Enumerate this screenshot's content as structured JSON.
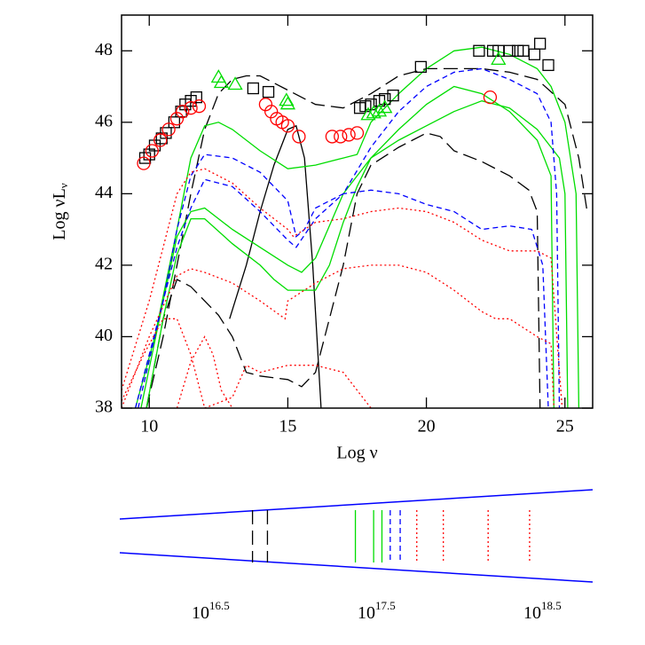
{
  "chart_data": [
    {
      "type": "line",
      "x_label": "Log ν",
      "y_label": {
        "main": "Log νL",
        "sub": "ν"
      },
      "xlim": [
        9,
        26
      ],
      "ylim": [
        38,
        49
      ],
      "xticks": [
        10,
        15,
        20,
        25
      ],
      "yticks": [
        38,
        40,
        42,
        44,
        46,
        48
      ],
      "series": [
        {
          "color": "#000000",
          "dash": "longdash",
          "x": [
            9.9,
            10.5,
            11,
            11.5,
            12,
            12.5,
            13,
            13.5,
            14,
            15,
            16,
            17,
            18,
            19,
            20,
            21,
            22,
            23,
            24,
            25,
            25.5,
            25.8
          ],
          "values": [
            38,
            40,
            42,
            44,
            45.8,
            46.8,
            47.2,
            47.3,
            47.3,
            46.9,
            46.5,
            46.4,
            46.8,
            47.3,
            47.5,
            47.5,
            47.5,
            47.4,
            47.2,
            46.5,
            45,
            43.5
          ]
        },
        {
          "color": "#000000",
          "dash": "longdash",
          "x": [
            9.9,
            10.5,
            11,
            11.5,
            12,
            12.5,
            13,
            13.5,
            14,
            15,
            15.5,
            16,
            16.5,
            17,
            17.5,
            18,
            19,
            20,
            20.5,
            21,
            22,
            23,
            23.7,
            24,
            24.1
          ],
          "values": [
            38,
            40.5,
            41.6,
            41.4,
            41,
            40.6,
            40,
            39,
            38.9,
            38.8,
            38.6,
            39,
            40.5,
            42,
            44,
            44.8,
            45.3,
            45.7,
            45.6,
            45.2,
            44.9,
            44.5,
            44.1,
            43.5,
            38
          ]
        },
        {
          "color": "#000000",
          "dash": "solid",
          "x": [
            12.9,
            13.5,
            14,
            14.5,
            15,
            15.3,
            15.6,
            15.9,
            16.2
          ],
          "values": [
            40.5,
            42,
            43.5,
            44.8,
            45.8,
            45.9,
            45,
            42,
            38
          ]
        },
        {
          "color": "#00dd00",
          "dash": "solid",
          "x": [
            9.5,
            10.2,
            11,
            11.5,
            12,
            12.5,
            13,
            14,
            15,
            16,
            17,
            17.5,
            18,
            19,
            20,
            21,
            22,
            23,
            24,
            24.5,
            25,
            25.4,
            25.5
          ],
          "values": [
            38,
            40,
            43,
            45,
            45.9,
            46,
            45.8,
            45.2,
            44.7,
            44.8,
            45,
            45.1,
            46,
            46.8,
            47.5,
            48,
            48.1,
            47.9,
            47.5,
            47,
            46,
            44,
            38
          ]
        },
        {
          "color": "#00dd00",
          "dash": "solid",
          "x": [
            9.7,
            10.5,
            11,
            11.5,
            12,
            13,
            14,
            15,
            15.5,
            16,
            17,
            18,
            19,
            20,
            21,
            22,
            23,
            24,
            24.5,
            24.6
          ],
          "values": [
            38,
            41,
            42.8,
            43.5,
            43.6,
            43,
            42.5,
            42,
            41.8,
            42.2,
            44,
            45,
            45.8,
            46.5,
            47,
            46.8,
            46.3,
            45.5,
            44.5,
            38
          ]
        },
        {
          "color": "#00dd00",
          "dash": "solid",
          "x": [
            9.9,
            10.5,
            11,
            11.5,
            12,
            13,
            14,
            14.5,
            15,
            16,
            16.5,
            17,
            17.5,
            18,
            19,
            20,
            21,
            22,
            23,
            24,
            24.8,
            25,
            25.1
          ],
          "values": [
            38,
            40.5,
            42.3,
            43.3,
            43.3,
            42.6,
            42,
            41.6,
            41.3,
            41.3,
            42,
            43.2,
            44.2,
            45,
            45.5,
            45.9,
            46.3,
            46.6,
            46.4,
            45.8,
            45,
            44,
            38
          ]
        },
        {
          "color": "#0000ff",
          "dash": "dashed",
          "x": [
            9.5,
            10.5,
            11,
            11.5,
            12,
            13,
            14,
            15,
            15.3,
            15.6,
            16,
            17,
            18,
            19,
            20,
            21,
            22,
            23,
            24,
            24.5,
            24.7,
            24.8
          ],
          "values": [
            38,
            41,
            43,
            44.5,
            45.1,
            45,
            44.6,
            43.8,
            42.8,
            43,
            43.6,
            44,
            45.3,
            46.3,
            47,
            47.4,
            47.5,
            47.2,
            46.8,
            46,
            44,
            38
          ]
        },
        {
          "color": "#0000ff",
          "dash": "dashed",
          "x": [
            9.6,
            10.5,
            11,
            11.5,
            12,
            13,
            14,
            15,
            15.3,
            16,
            17,
            18,
            19,
            20,
            21,
            22,
            23,
            23.8,
            24.2,
            24.4
          ],
          "values": [
            38,
            41,
            42.5,
            43.6,
            44.4,
            44.2,
            43.5,
            42.7,
            42.5,
            43.3,
            44,
            44.1,
            44,
            43.7,
            43.5,
            43,
            43.1,
            43,
            42,
            38
          ]
        },
        {
          "color": "#ff0000",
          "dash": "dotted",
          "x": [
            9,
            10,
            10.5,
            11,
            11.5,
            12,
            13,
            14,
            15,
            15.2,
            16,
            17,
            18,
            19,
            20,
            21,
            22,
            23,
            24,
            24.5,
            24.9
          ],
          "values": [
            38.5,
            41,
            42.5,
            44,
            44.6,
            44.7,
            44.3,
            43.6,
            43,
            42.8,
            43.2,
            43.3,
            43.5,
            43.6,
            43.5,
            43.2,
            42.7,
            42.4,
            42.4,
            42.2,
            38
          ]
        },
        {
          "color": "#ff0000",
          "dash": "dotted",
          "x": [
            9,
            10,
            11,
            11.5,
            12,
            13,
            14,
            14.9,
            15,
            16,
            17,
            18,
            19,
            20,
            21,
            22,
            22.5,
            23,
            24,
            24.5,
            24.6
          ],
          "values": [
            38,
            40,
            41.7,
            41.9,
            41.8,
            41.5,
            41,
            40.5,
            41,
            41.5,
            41.9,
            42,
            42,
            41.8,
            41.3,
            40.7,
            40.5,
            40.5,
            40,
            39.8,
            38
          ]
        },
        {
          "color": "#ff0000",
          "dash": "dotted",
          "x": [
            9,
            9.8,
            10.5,
            11,
            11.5,
            12,
            13,
            13.5,
            14,
            15,
            16,
            16.5,
            17,
            17.5,
            18
          ],
          "values": [
            38.2,
            39.5,
            40.5,
            40.5,
            39.5,
            38,
            38.3,
            39.2,
            39,
            39.2,
            39.2,
            39.1,
            39,
            38.5,
            38
          ]
        },
        {
          "color": "#ff0000",
          "dash": "dotted",
          "x": [
            11,
            11.5,
            12,
            12.3,
            12.6,
            13
          ],
          "values": [
            38,
            39.3,
            40,
            39.5,
            38.5,
            38
          ]
        },
        {
          "color": "#000000",
          "marker": "square",
          "x": [
            9.85,
            10.0,
            10.2,
            10.45,
            10.6,
            10.9,
            11.15,
            11.3,
            11.5,
            11.7,
            13.75,
            14.3,
            17.6,
            17.8,
            18.0,
            18.3,
            18.5,
            18.8,
            19.8,
            21.9,
            22.4,
            22.6,
            23.0,
            23.3,
            23.5,
            23.9,
            24.1,
            24.4
          ],
          "values": [
            45.0,
            45.1,
            45.35,
            45.55,
            45.7,
            46.0,
            46.3,
            46.5,
            46.6,
            46.7,
            46.95,
            46.85,
            46.4,
            46.45,
            46.5,
            46.6,
            46.65,
            46.75,
            47.55,
            48.0,
            48.0,
            48.0,
            48.0,
            48.0,
            48.0,
            47.9,
            48.2,
            47.6
          ]
        },
        {
          "color": "#ff0000",
          "marker": "circle",
          "x": [
            9.8,
            10.1,
            10.4,
            10.7,
            11.0,
            11.2,
            11.5,
            11.8,
            14.2,
            14.4,
            14.6,
            14.8,
            15.0,
            15.4,
            16.6,
            16.9,
            17.2,
            17.5,
            22.3
          ],
          "values": [
            44.85,
            45.2,
            45.5,
            45.8,
            46.1,
            46.3,
            46.4,
            46.45,
            46.5,
            46.3,
            46.1,
            46.0,
            45.9,
            45.6,
            45.6,
            45.6,
            45.65,
            45.7,
            46.7
          ]
        },
        {
          "color": "#00dd00",
          "marker": "triangle",
          "x": [
            12.5,
            12.6,
            13.1,
            14.95,
            15.0,
            17.9,
            18.1,
            18.3,
            18.5,
            22.6
          ],
          "values": [
            47.25,
            47.1,
            47.05,
            46.6,
            46.5,
            46.2,
            46.25,
            46.3,
            46.4,
            47.75
          ]
        }
      ]
    },
    {
      "type": "strip",
      "xlim": [
        15.91,
        18.76
      ],
      "xticks": [
        16.5,
        17.5,
        18.5
      ],
      "tick_base": "10",
      "cone_color": "#0000ff",
      "series": [
        {
          "color": "#000000",
          "dash": "longdash",
          "values": [
            16.71,
            16.8
          ]
        },
        {
          "color": "#00dd00",
          "dash": "solid",
          "values": [
            17.33,
            17.44,
            17.49
          ]
        },
        {
          "color": "#0000ff",
          "dash": "dashed",
          "values": [
            17.54,
            17.6
          ]
        },
        {
          "color": "#ff0000",
          "dash": "dotted",
          "values": [
            17.7,
            17.86,
            18.13,
            18.38
          ]
        }
      ]
    }
  ]
}
